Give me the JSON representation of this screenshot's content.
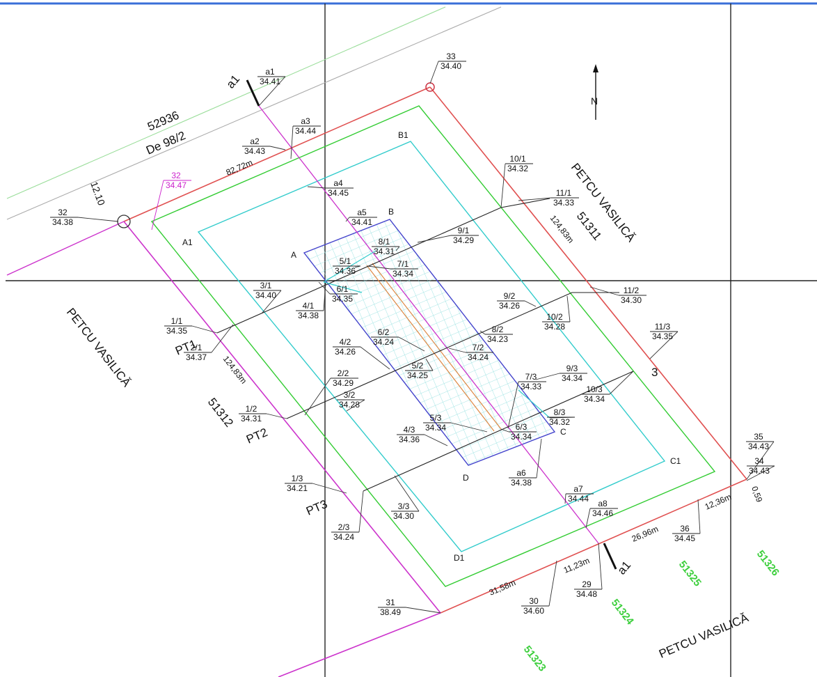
{
  "colors": {
    "border_top": "#3a6fd8",
    "parcel_red": "#e05050",
    "offset_green": "#33cc33",
    "inner_cyan": "#33cccc",
    "building_blue": "#4444cc",
    "section_magenta": "#cc33cc",
    "road_green": "#99dd99",
    "road_gray": "#888888",
    "profile_black": "#222222",
    "hatch_cyan": "#88dddd",
    "orange": "#dd8844",
    "parcel_label_green": "#3ecf3e"
  },
  "parcel_labels": {
    "p52936": "52936",
    "de": "De 98/2",
    "p51311": "51311",
    "p51312": "51312",
    "p51323": "51323",
    "p51324": "51324",
    "p51325": "51325",
    "p51326": "51326"
  },
  "street_labels": {
    "right": "PETCU VASILICĂ",
    "left": "PETCU VASILICĂ",
    "bottom": "PETCU VASILICĂ"
  },
  "north": "N",
  "corner_labels": {
    "A": "A",
    "B": "B",
    "C": "C",
    "D": "D",
    "A1": "A1",
    "B1": "B1",
    "C1": "C1",
    "D1": "D1",
    "three": "3"
  },
  "section_labels": {
    "a1_top": "a1",
    "a1_bottom": "a1"
  },
  "profile_labels": {
    "pt1": "PT1",
    "pt2": "PT2",
    "pt3": "PT3"
  },
  "distances": {
    "d82": "82,72m",
    "d124_right": "124,83m",
    "d124_left": "124,83m",
    "d12_10": "12.10",
    "d12_36": "12,36m",
    "d26": "26,96m",
    "d11": "11,23m",
    "d31": "31,58m",
    "d0_59": "0,59"
  },
  "points": [
    {
      "id": "a1",
      "z": "34.41"
    },
    {
      "id": "33",
      "z": "34.40"
    },
    {
      "id": "a2",
      "z": "34.43"
    },
    {
      "id": "a3",
      "z": "34.44"
    },
    {
      "id": "32",
      "z": "34.47",
      "highlight": true
    },
    {
      "id": "32",
      "z": "34.38"
    },
    {
      "id": "a4",
      "z": "34.45"
    },
    {
      "id": "a5",
      "z": "34.41"
    },
    {
      "id": "10/1",
      "z": "34.32"
    },
    {
      "id": "11/1",
      "z": "34.33"
    },
    {
      "id": "9/1",
      "z": "34.29"
    },
    {
      "id": "8/1",
      "z": "34.31"
    },
    {
      "id": "7/1",
      "z": "34.34"
    },
    {
      "id": "5/1",
      "z": "34.36"
    },
    {
      "id": "6/1",
      "z": "34.35"
    },
    {
      "id": "3/1",
      "z": "34.40"
    },
    {
      "id": "4/1",
      "z": "34.38"
    },
    {
      "id": "1/1",
      "z": "34.35"
    },
    {
      "id": "2/1",
      "z": "34.37"
    },
    {
      "id": "11/2",
      "z": "34.30"
    },
    {
      "id": "9/2",
      "z": "34.26"
    },
    {
      "id": "10/2",
      "z": "34.28"
    },
    {
      "id": "8/2",
      "z": "34.23"
    },
    {
      "id": "7/2",
      "z": "34.24"
    },
    {
      "id": "6/2",
      "z": "34.24"
    },
    {
      "id": "4/2",
      "z": "34.26"
    },
    {
      "id": "5/2",
      "z": "34.25"
    },
    {
      "id": "2/2",
      "z": "34.29"
    },
    {
      "id": "3/2",
      "z": "34.28"
    },
    {
      "id": "1/2",
      "z": "34.31"
    },
    {
      "id": "11/3",
      "z": "34.35"
    },
    {
      "id": "9/3",
      "z": "34.34"
    },
    {
      "id": "10/3",
      "z": "34.34"
    },
    {
      "id": "7/3",
      "z": "34.33"
    },
    {
      "id": "8/3",
      "z": "34.32"
    },
    {
      "id": "6/3",
      "z": "34.34"
    },
    {
      "id": "5/3",
      "z": "34.34"
    },
    {
      "id": "4/3",
      "z": "34.36"
    },
    {
      "id": "1/3",
      "z": "34.21"
    },
    {
      "id": "3/3",
      "z": "34.30"
    },
    {
      "id": "2/3",
      "z": "34.24"
    },
    {
      "id": "a6",
      "z": "34.38"
    },
    {
      "id": "a7",
      "z": "34.44"
    },
    {
      "id": "a8",
      "z": "34.46"
    },
    {
      "id": "35",
      "z": "34.43"
    },
    {
      "id": "34",
      "z": "34.43"
    },
    {
      "id": "36",
      "z": "34.45"
    },
    {
      "id": "29",
      "z": "34.48"
    },
    {
      "id": "30",
      "z": "34.60"
    },
    {
      "id": "31",
      "z": "38.49"
    }
  ]
}
